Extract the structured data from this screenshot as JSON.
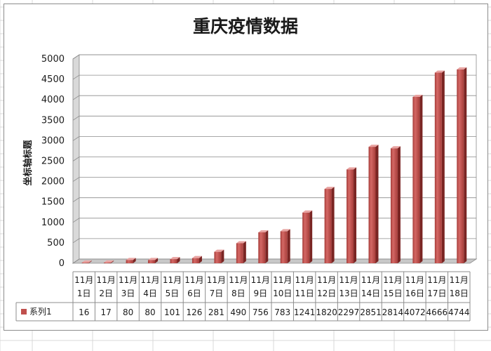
{
  "chart_data": {
    "type": "bar",
    "title": "重庆疫情数据",
    "ylabel": "坐标轴标题",
    "xlabel": "",
    "ylim": [
      0,
      5000
    ],
    "yticks": [
      0,
      500,
      1000,
      1500,
      2000,
      2500,
      3000,
      3500,
      4000,
      4500,
      5000
    ],
    "grid": true,
    "legend": "data-table-left",
    "categories": [
      [
        "11月",
        "1日"
      ],
      [
        "11月",
        "2日"
      ],
      [
        "11月",
        "3日"
      ],
      [
        "11月",
        "4日"
      ],
      [
        "11月",
        "5日"
      ],
      [
        "11月",
        "6日"
      ],
      [
        "11月",
        "7日"
      ],
      [
        "11月",
        "8日"
      ],
      [
        "11月",
        "9日"
      ],
      [
        "11月",
        "10日"
      ],
      [
        "11月",
        "11日"
      ],
      [
        "11月",
        "12日"
      ],
      [
        "11月",
        "13日"
      ],
      [
        "11月",
        "14日"
      ],
      [
        "11月",
        "15日"
      ],
      [
        "11月",
        "16日"
      ],
      [
        "11月",
        "17日"
      ],
      [
        "11月",
        "18日"
      ]
    ],
    "series": [
      {
        "name": "系列1",
        "color": "#c0504d",
        "values": [
          16,
          17,
          80,
          80,
          101,
          126,
          281,
          490,
          756,
          783,
          1241,
          1820,
          2297,
          2851,
          2814,
          4072,
          4666,
          4744
        ]
      }
    ]
  }
}
